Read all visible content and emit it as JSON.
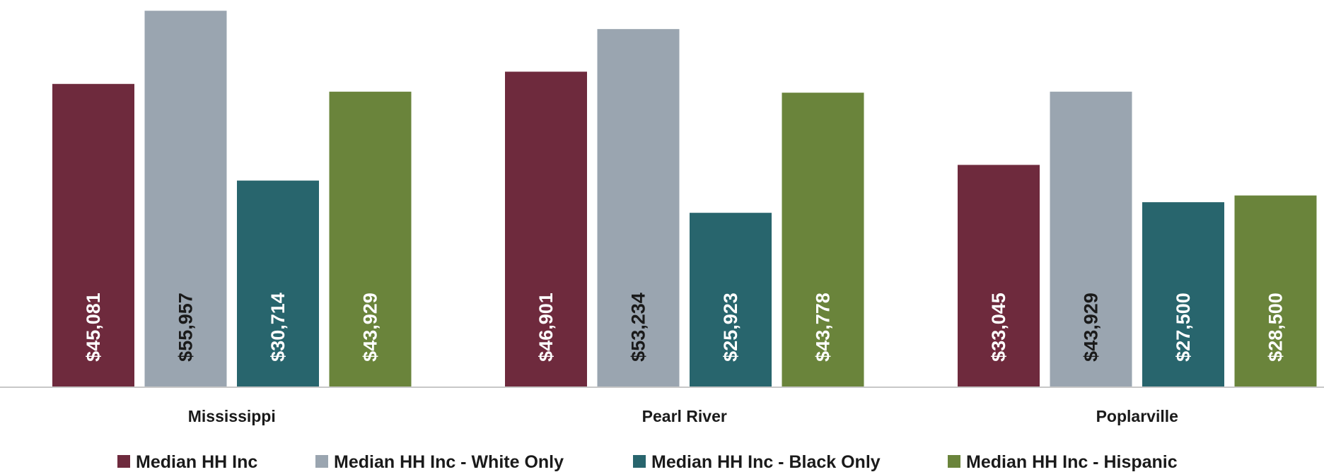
{
  "chart_data": {
    "type": "bar",
    "categories": [
      "Mississippi",
      "Pearl River",
      "Poplarville"
    ],
    "series": [
      {
        "name": "Median HH Inc",
        "color": "#6e2a3d",
        "label_color": "#ffffff",
        "values": [
          45081,
          46901,
          33045
        ],
        "labels": [
          "$45,081",
          "$46,901",
          "$33,045"
        ]
      },
      {
        "name": "Median HH Inc - White Only",
        "color": "#9aa5b0",
        "label_color": "#1a1a1a",
        "values": [
          55957,
          53234,
          43929
        ],
        "labels": [
          "$55,957",
          "$53,234",
          "$43,929"
        ]
      },
      {
        "name": "Median HH Inc - Black Only",
        "color": "#28656d",
        "label_color": "#ffffff",
        "values": [
          30714,
          25923,
          27500
        ],
        "labels": [
          "$30,714",
          "$25,923",
          "$27,500"
        ]
      },
      {
        "name": "Median HH Inc - Hispanic",
        "color": "#6a843b",
        "label_color": "#ffffff",
        "values": [
          43929,
          43778,
          28500
        ],
        "labels": [
          "$43,929",
          "$43,778",
          "$28,500"
        ]
      }
    ],
    "title": "",
    "xlabel": "",
    "ylabel": "",
    "ylim": [
      0,
      56400
    ],
    "grid": false,
    "legend": "bottom"
  }
}
